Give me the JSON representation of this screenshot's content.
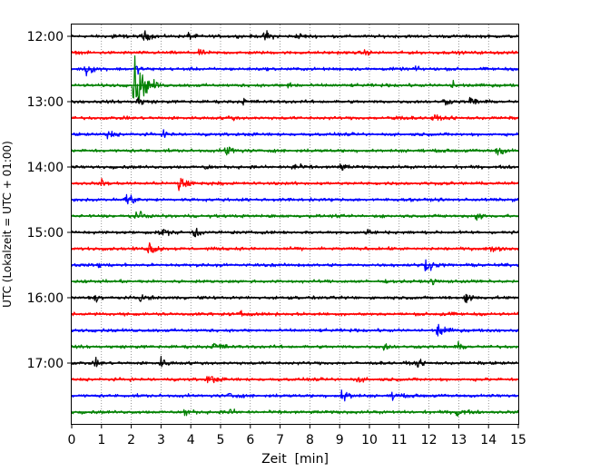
{
  "chart_data": {
    "type": "line",
    "title": "",
    "xlabel": "Zeit  [min]",
    "ylabel": "UTC (Lokalzeit = UTC + 01:00)",
    "xlim": [
      0,
      15
    ],
    "x_ticks": [
      0,
      1,
      2,
      3,
      4,
      5,
      6,
      7,
      8,
      9,
      10,
      11,
      12,
      13,
      14,
      15
    ],
    "x_tick_labels": [
      "0",
      "1",
      "2",
      "3",
      "4",
      "5",
      "6",
      "7",
      "8",
      "9",
      "10",
      "11",
      "12",
      "13",
      "14",
      "15"
    ],
    "y_tick_labels": [
      "12:00",
      "13:00",
      "14:00",
      "15:00",
      "16:00",
      "17:00"
    ],
    "grid": "vertical dotted",
    "trace_interval_min": 15,
    "traces": [
      {
        "time": "12:00",
        "color": "#000000",
        "events": [
          [
            2.4,
            0.35
          ],
          [
            6.5,
            0.35
          ],
          [
            1.4,
            0.2
          ],
          [
            3.9,
            0.2
          ],
          [
            7.6,
            0.2
          ]
        ]
      },
      {
        "time": "12:15",
        "color": "#ff0000",
        "events": [
          [
            4.3,
            0.15
          ],
          [
            9.8,
            0.15
          ]
        ]
      },
      {
        "time": "12:30",
        "color": "#0000ff",
        "events": [
          [
            0.5,
            0.4
          ],
          [
            2.2,
            0.2
          ],
          [
            11.5,
            0.15
          ]
        ]
      },
      {
        "time": "12:45",
        "color": "#008000",
        "events": [
          [
            2.1,
            1.6
          ],
          [
            7.3,
            0.25
          ],
          [
            12.8,
            0.25
          ]
        ]
      },
      {
        "time": "13:00",
        "color": "#000000",
        "events": [
          [
            2.2,
            0.3
          ],
          [
            13.4,
            0.3
          ],
          [
            5.8,
            0.2
          ],
          [
            12.5,
            0.2
          ]
        ]
      },
      {
        "time": "13:15",
        "color": "#ff0000",
        "events": [
          [
            10.8,
            0.25
          ],
          [
            12.1,
            0.2
          ],
          [
            5.3,
            0.15
          ]
        ]
      },
      {
        "time": "13:30",
        "color": "#0000ff",
        "events": [
          [
            1.2,
            0.3
          ],
          [
            3.1,
            0.2
          ]
        ]
      },
      {
        "time": "13:45",
        "color": "#008000",
        "events": [
          [
            5.2,
            0.45
          ],
          [
            14.3,
            0.35
          ]
        ]
      },
      {
        "time": "14:00",
        "color": "#000000",
        "events": [
          [
            7.4,
            0.35
          ],
          [
            9.0,
            0.25
          ],
          [
            4.5,
            0.15
          ]
        ]
      },
      {
        "time": "14:15",
        "color": "#ff0000",
        "events": [
          [
            3.6,
            0.6
          ],
          [
            1.0,
            0.2
          ]
        ]
      },
      {
        "time": "14:30",
        "color": "#0000ff",
        "events": [
          [
            1.8,
            0.55
          ]
        ]
      },
      {
        "time": "14:45",
        "color": "#008000",
        "events": [
          [
            2.2,
            0.3
          ],
          [
            13.6,
            0.3
          ]
        ]
      },
      {
        "time": "15:00",
        "color": "#000000",
        "events": [
          [
            3.0,
            0.35
          ],
          [
            4.1,
            0.35
          ],
          [
            9.9,
            0.2
          ]
        ]
      },
      {
        "time": "15:15",
        "color": "#ff0000",
        "events": [
          [
            2.6,
            0.45
          ],
          [
            14.1,
            0.2
          ]
        ]
      },
      {
        "time": "15:30",
        "color": "#0000ff",
        "events": [
          [
            11.9,
            0.4
          ],
          [
            0.9,
            0.15
          ]
        ]
      },
      {
        "time": "15:45",
        "color": "#008000",
        "events": [
          [
            12.1,
            0.15
          ]
        ]
      },
      {
        "time": "16:00",
        "color": "#000000",
        "events": [
          [
            13.2,
            0.4
          ],
          [
            0.8,
            0.2
          ],
          [
            2.3,
            0.2
          ]
        ]
      },
      {
        "time": "16:15",
        "color": "#ff0000",
        "events": [
          [
            12.4,
            0.2
          ],
          [
            5.7,
            0.15
          ]
        ]
      },
      {
        "time": "16:30",
        "color": "#0000ff",
        "events": [
          [
            12.3,
            0.45
          ]
        ]
      },
      {
        "time": "16:45",
        "color": "#008000",
        "events": [
          [
            4.8,
            0.45
          ],
          [
            10.5,
            0.2
          ],
          [
            13.0,
            0.2
          ]
        ]
      },
      {
        "time": "17:00",
        "color": "#000000",
        "events": [
          [
            3.0,
            0.3
          ],
          [
            0.8,
            0.2
          ],
          [
            11.6,
            0.2
          ]
        ]
      },
      {
        "time": "17:15",
        "color": "#ff0000",
        "events": [
          [
            4.6,
            0.35
          ],
          [
            9.6,
            0.2
          ]
        ]
      },
      {
        "time": "17:30",
        "color": "#0000ff",
        "events": [
          [
            9.1,
            0.45
          ],
          [
            10.8,
            0.25
          ],
          [
            5.3,
            0.2
          ]
        ]
      },
      {
        "time": "17:45",
        "color": "#008000",
        "events": [
          [
            12.9,
            0.4
          ],
          [
            3.8,
            0.25
          ],
          [
            5.3,
            0.2
          ]
        ]
      }
    ]
  }
}
